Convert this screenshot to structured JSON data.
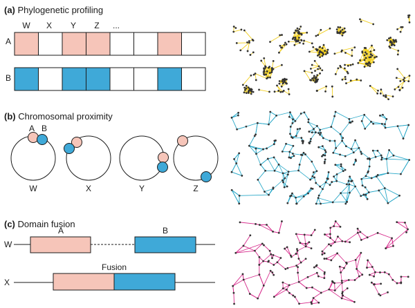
{
  "panels": [
    {
      "letter": "(a)",
      "title": "Phylogenetic profiling"
    },
    {
      "letter": "(b)",
      "title": "Chromosomal proximity"
    },
    {
      "letter": "(c)",
      "title": "Domain fusion"
    }
  ],
  "profiling": {
    "column_labels": [
      "W",
      "X",
      "Y",
      "Z",
      "..."
    ],
    "rows": [
      {
        "label": "A",
        "color": "#f6c5b9",
        "pattern": [
          1,
          0,
          1,
          1,
          0,
          0,
          1,
          0
        ]
      },
      {
        "label": "B",
        "color": "#3fa9d8",
        "pattern": [
          1,
          0,
          1,
          1,
          0,
          0,
          1,
          0
        ]
      }
    ]
  },
  "proximity": {
    "gene_labels": [
      "A",
      "B"
    ],
    "genomes": [
      "W",
      "X",
      "Y",
      "Z"
    ],
    "gene_a_color": "#f6c5b9",
    "gene_b_color": "#3fa9d8"
  },
  "fusion": {
    "row_labels": [
      "W",
      "X"
    ],
    "domain_a": "A",
    "domain_b": "B",
    "fusion_label": "Fusion",
    "domain_a_color": "#f6c5b9",
    "domain_b_color": "#3fa9d8"
  },
  "networks": [
    {
      "name": "profiling-network",
      "color": "#f2cf1d"
    },
    {
      "name": "proximity-network",
      "color": "#28a8c8"
    },
    {
      "name": "fusion-network",
      "color": "#d6288a"
    }
  ]
}
